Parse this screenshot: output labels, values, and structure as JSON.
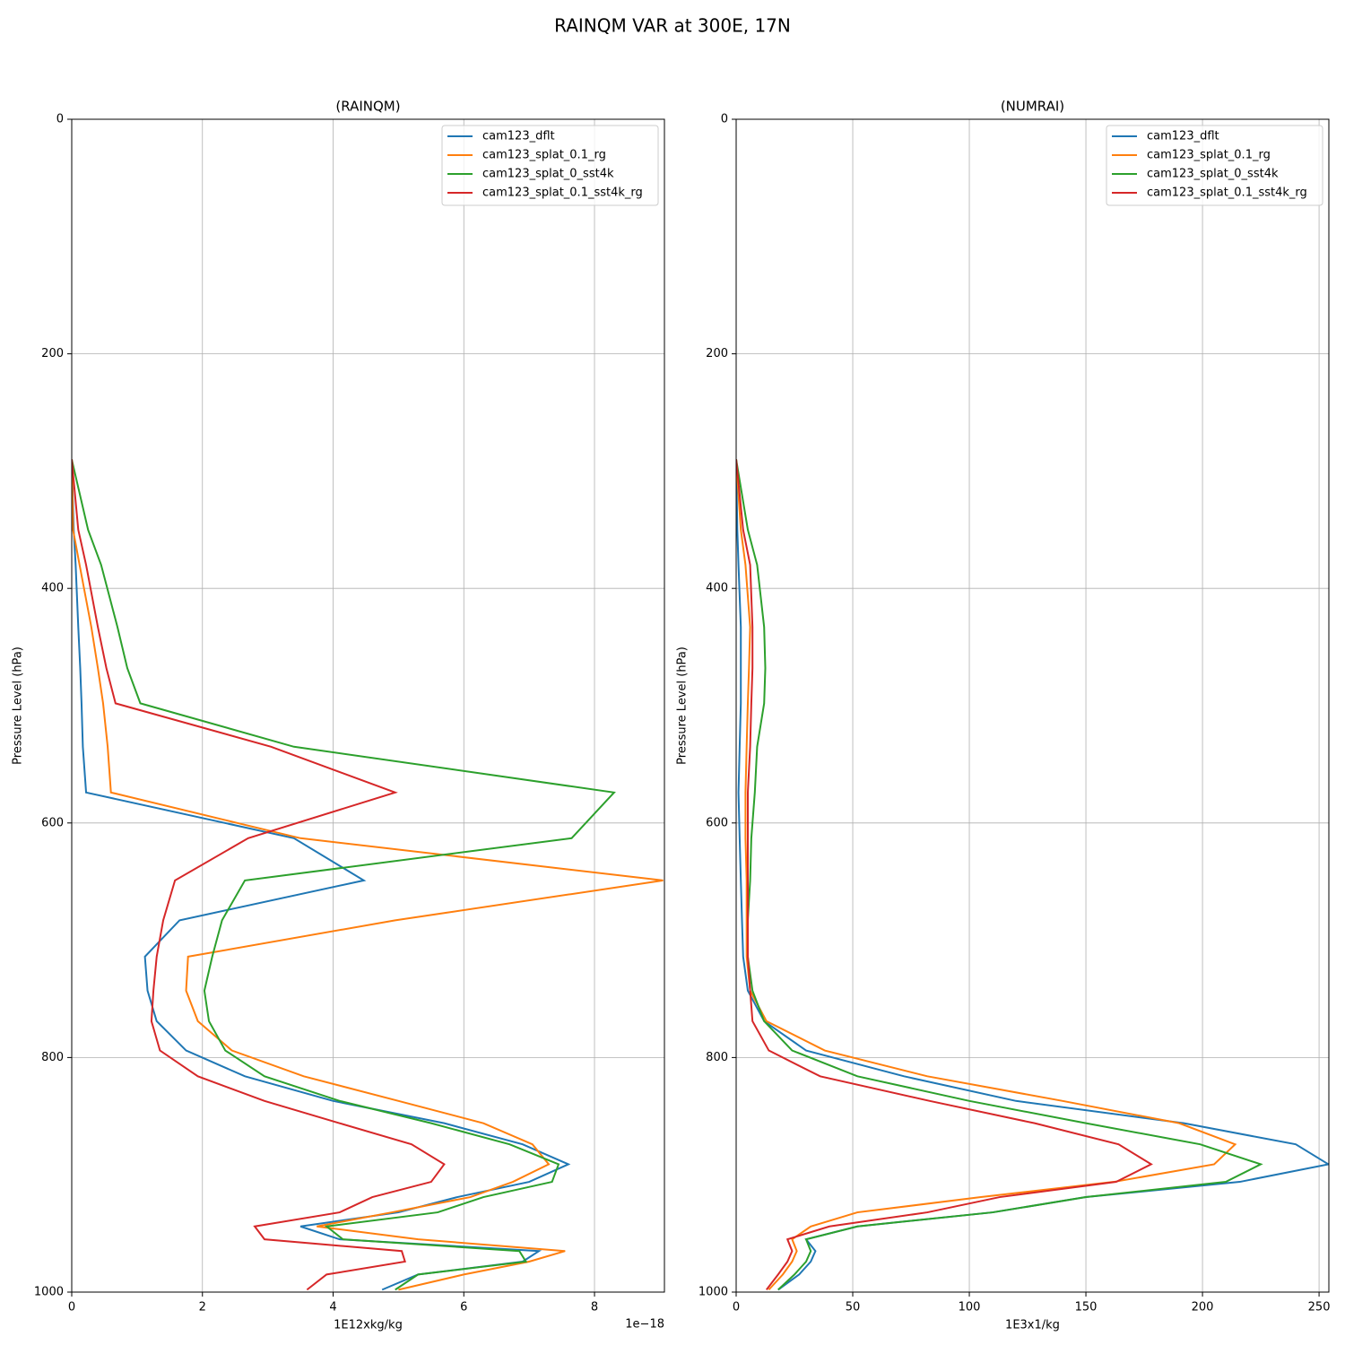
{
  "title": "RAINQM VAR at 300E, 17N",
  "chart_data": [
    {
      "type": "line",
      "title": "(RAINQM)",
      "x_label": "1E12xkg/kg",
      "y_label": "Pressure Level (hPa)",
      "x_offset_label": "1e−18",
      "xlim": [
        0,
        9.07
      ],
      "xticks": [
        0,
        2,
        4,
        6,
        8
      ],
      "ylim": [
        0,
        1000
      ],
      "yticks": [
        0,
        200,
        400,
        600,
        800,
        1000
      ],
      "y_inverted": true,
      "grid": true,
      "legend": "upper right",
      "y": [
        290,
        350,
        380,
        433,
        468,
        498,
        535,
        574,
        613,
        649,
        683,
        714,
        743,
        769,
        794,
        816,
        837,
        856,
        874,
        891,
        906,
        919,
        932,
        944,
        955,
        965,
        974,
        985,
        998
      ],
      "series": [
        {
          "name": "cam123_dflt",
          "color": "#1f77b4",
          "values": [
            0,
            0.03,
            0.06,
            0.1,
            0.13,
            0.15,
            0.17,
            0.22,
            3.4,
            4.47,
            1.65,
            1.12,
            1.16,
            1.3,
            1.75,
            2.65,
            4.0,
            5.7,
            6.9,
            7.6,
            7.0,
            5.9,
            5.0,
            3.5,
            4.1,
            7.15,
            6.9,
            5.3,
            4.75
          ]
        },
        {
          "name": "cam123_splat_0.1_rg",
          "color": "#ff7f0e",
          "values": [
            0,
            0.02,
            0.12,
            0.3,
            0.4,
            0.48,
            0.55,
            0.6,
            3.5,
            9.05,
            4.95,
            1.78,
            1.75,
            1.93,
            2.45,
            3.55,
            5.0,
            6.3,
            7.05,
            7.3,
            6.75,
            6.1,
            4.9,
            3.75,
            5.3,
            7.55,
            7.0,
            6.0,
            5.0
          ]
        },
        {
          "name": "cam123_splat_0_sst4k",
          "color": "#2ca02c",
          "values": [
            0,
            0.25,
            0.45,
            0.7,
            0.85,
            1.05,
            3.4,
            8.3,
            7.65,
            2.65,
            2.3,
            2.15,
            2.03,
            2.1,
            2.35,
            2.95,
            4.1,
            5.5,
            6.7,
            7.45,
            7.35,
            6.3,
            5.6,
            3.9,
            4.15,
            6.85,
            6.95,
            5.3,
            4.95
          ]
        },
        {
          "name": "cam123_splat_0.1_sst4k_rg",
          "color": "#d62728",
          "values": [
            0,
            0.1,
            0.22,
            0.4,
            0.53,
            0.67,
            3.05,
            4.95,
            2.7,
            1.58,
            1.4,
            1.3,
            1.25,
            1.22,
            1.35,
            1.93,
            2.95,
            4.1,
            5.2,
            5.7,
            5.5,
            4.6,
            4.1,
            2.8,
            2.95,
            5.05,
            5.1,
            3.9,
            3.6
          ]
        }
      ]
    },
    {
      "type": "line",
      "title": "(NUMRAI)",
      "x_label": "1E3x1/kg",
      "y_label": "Pressure Level (hPa)",
      "xlim": [
        0,
        254.2
      ],
      "xticks": [
        0,
        50,
        100,
        150,
        200,
        250
      ],
      "ylim": [
        0,
        1000
      ],
      "yticks": [
        0,
        200,
        400,
        600,
        800,
        1000
      ],
      "y_inverted": true,
      "grid": true,
      "legend": "upper right",
      "y": [
        290,
        350,
        380,
        433,
        468,
        498,
        535,
        574,
        613,
        649,
        683,
        714,
        743,
        769,
        794,
        816,
        837,
        856,
        874,
        891,
        906,
        919,
        932,
        944,
        955,
        965,
        974,
        985,
        998
      ],
      "series": [
        {
          "name": "cam123_dflt",
          "color": "#1f77b4",
          "values": [
            0,
            0.5,
            1,
            2,
            2,
            2,
            1.5,
            1,
            1.5,
            2,
            2.5,
            3,
            5,
            12,
            30,
            72,
            120,
            192,
            240,
            254,
            216,
            150,
            110,
            52,
            30,
            34,
            32,
            27,
            18
          ]
        },
        {
          "name": "cam123_splat_0.1_rg",
          "color": "#ff7f0e",
          "values": [
            0,
            2,
            4,
            6,
            5.5,
            5,
            4.5,
            4,
            4,
            4.5,
            4.5,
            4.5,
            6,
            13,
            38,
            82,
            140,
            190,
            214,
            205,
            162,
            105,
            52,
            32,
            24,
            26,
            24,
            20,
            14
          ]
        },
        {
          "name": "cam123_splat_0_sst4k",
          "color": "#2ca02c",
          "values": [
            0,
            5,
            9,
            12,
            12.5,
            12,
            9,
            8,
            6.5,
            6,
            5,
            5,
            7,
            12,
            24,
            52,
            100,
            150,
            199,
            225,
            210,
            150,
            110,
            52,
            30,
            32,
            30,
            25,
            18
          ]
        },
        {
          "name": "cam123_splat_0.1_sst4k_rg",
          "color": "#d62728",
          "values": [
            0,
            3,
            6,
            7,
            7,
            6.5,
            6,
            5,
            5,
            5,
            5,
            5,
            6,
            7,
            14,
            36,
            83,
            128,
            164,
            178,
            163,
            113,
            82,
            40,
            22,
            24,
            22,
            18,
            13
          ]
        }
      ]
    }
  ]
}
